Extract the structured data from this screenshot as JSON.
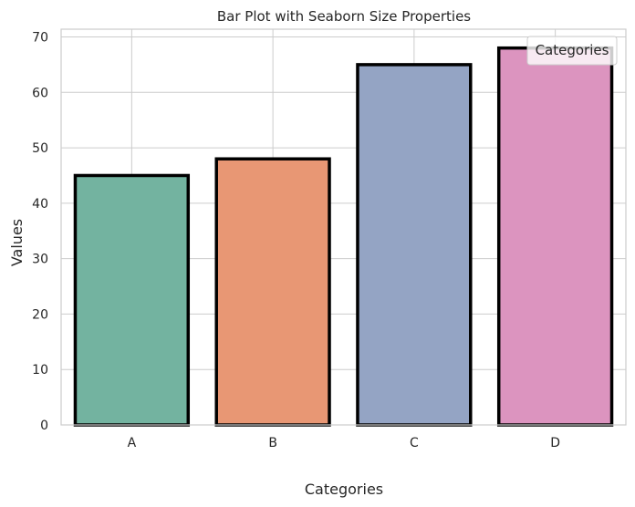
{
  "chart_data": {
    "type": "bar",
    "title": "Bar Plot with Seaborn Size Properties",
    "xlabel": "Categories",
    "ylabel": "Values",
    "categories": [
      "A",
      "B",
      "C",
      "D"
    ],
    "values": [
      45,
      48,
      65,
      68
    ],
    "ylim": [
      0,
      71.4
    ],
    "yticks": [
      0,
      10,
      20,
      30,
      40,
      50,
      60,
      70
    ],
    "grid": true,
    "legend": {
      "title": "Categories",
      "placement": "top-right"
    },
    "colors": [
      "#73b3a0",
      "#e89774",
      "#94a4c4",
      "#dc94bf"
    ],
    "edge_color": "#000000"
  }
}
